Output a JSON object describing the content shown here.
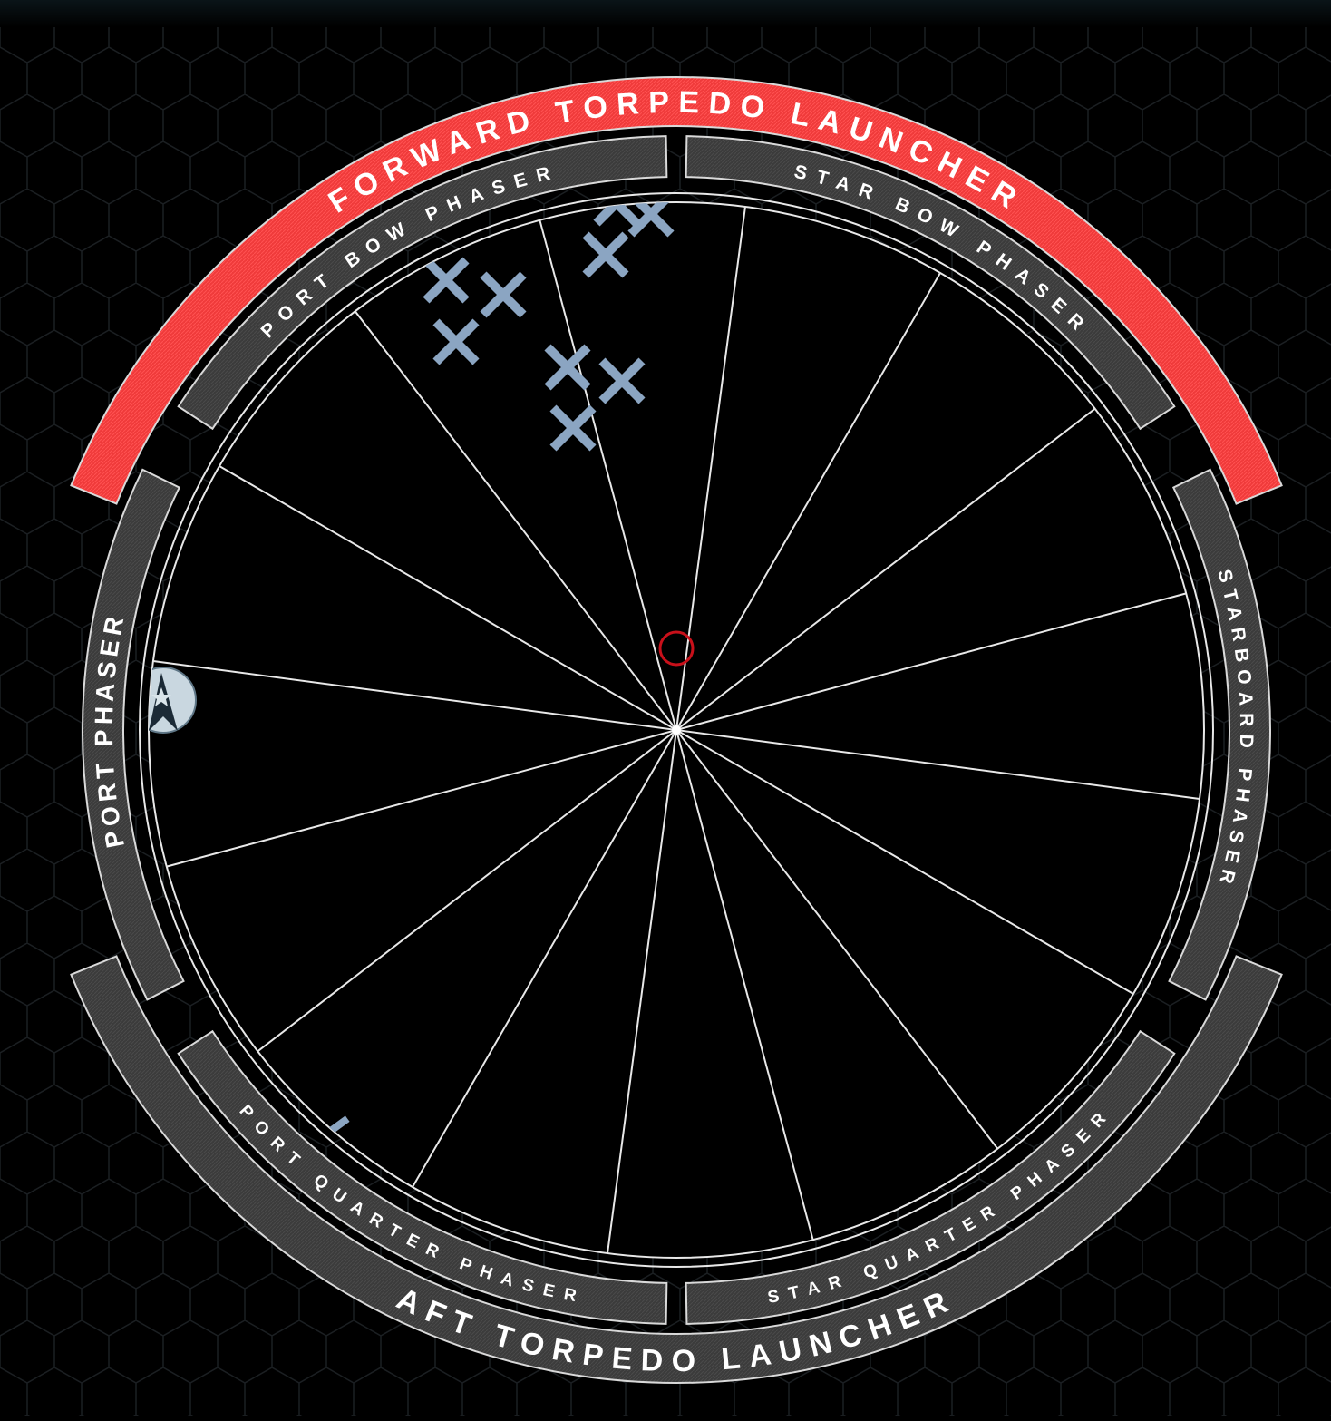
{
  "colors": {
    "background": "#000000",
    "hex_grid": "#1b1f22",
    "active_arc": "#ef3a3a",
    "inactive_arc": "#3b3b3b",
    "arc_border": "#d9d9d9",
    "scope_lines": "#e8e8e8",
    "target_marker": "#c8101a",
    "enemy_marker": "#8ba5c2"
  },
  "weapons": {
    "forward_torpedo": {
      "label": "FORWARD TORPEDO LAUNCHER",
      "active": true
    },
    "aft_torpedo": {
      "label": "AFT TORPEDO LAUNCHER",
      "active": false
    },
    "port_bow": {
      "label": "PORT BOW PHASER",
      "active": false
    },
    "star_bow": {
      "label": "STAR BOW PHASER",
      "active": false
    },
    "port": {
      "label": "PORT PHASER",
      "active": false
    },
    "starboard": {
      "label": "STARBOARD PHASER",
      "active": false
    },
    "port_quarter": {
      "label": "PORT QUARTER PHASER",
      "active": false
    },
    "star_quarter": {
      "label": "STAR QUARTER PHASER",
      "active": false
    }
  },
  "scope": {
    "sector_count": 16
  },
  "contacts": {
    "enemy_icon": "x-mark-icon",
    "ally_icon": "starfleet-delta-icon",
    "target_icon": "target-ring-icon",
    "enemy_count": 10
  }
}
